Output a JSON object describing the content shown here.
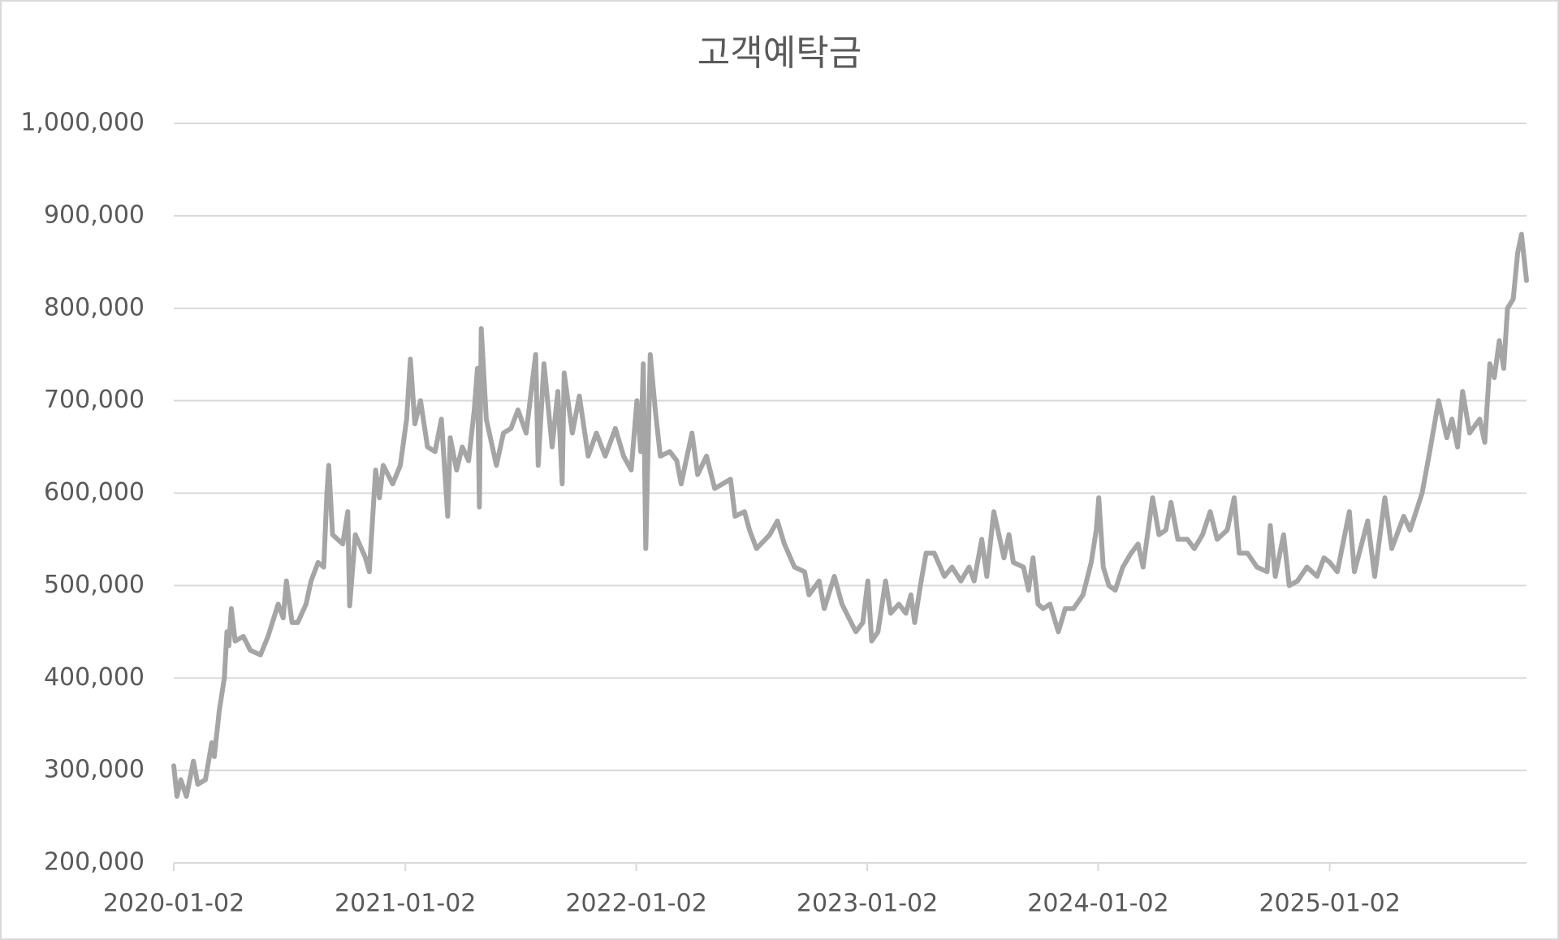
{
  "chart_data": {
    "type": "line",
    "title": "고객예탁금",
    "color": "#a5a5a5",
    "grid": true,
    "ylim": [
      200000,
      1000000
    ],
    "yticks": [
      {
        "value": 200000,
        "label": "200,000"
      },
      {
        "value": 300000,
        "label": "300,000"
      },
      {
        "value": 400000,
        "label": "400,000"
      },
      {
        "value": 500000,
        "label": "500,000"
      },
      {
        "value": 600000,
        "label": "600,000"
      },
      {
        "value": 700000,
        "label": "700,000"
      },
      {
        "value": 800000,
        "label": "800,000"
      },
      {
        "value": 900000,
        "label": "900,000"
      },
      {
        "value": 1000000,
        "label": "1,000,000"
      }
    ],
    "xlim": [
      "2020-01-02",
      "2025-11-09"
    ],
    "xticks": [
      "2020-01-02",
      "2021-01-02",
      "2022-01-02",
      "2023-01-02",
      "2024-01-02",
      "2025-01-02"
    ],
    "x": [
      "2020-01-02",
      "2020-01-07",
      "2020-01-13",
      "2020-01-22",
      "2020-02-02",
      "2020-02-09",
      "2020-02-21",
      "2020-03-02",
      "2020-03-06",
      "2020-03-14",
      "2020-03-22",
      "2020-03-26",
      "2020-03-29",
      "2020-04-02",
      "2020-04-08",
      "2020-04-21",
      "2020-05-02",
      "2020-05-18",
      "2020-05-30",
      "2020-06-15",
      "2020-06-23",
      "2020-06-28",
      "2020-07-07",
      "2020-07-16",
      "2020-07-29",
      "2020-08-06",
      "2020-08-17",
      "2020-08-26",
      "2020-08-31",
      "2020-09-03",
      "2020-09-09",
      "2020-09-25",
      "2020-10-03",
      "2020-10-06",
      "2020-10-15",
      "2020-10-31",
      "2020-11-06",
      "2020-11-16",
      "2020-11-22",
      "2020-11-28",
      "2020-12-13",
      "2020-12-25",
      "2021-01-04",
      "2021-01-10",
      "2021-01-17",
      "2021-01-26",
      "2021-02-06",
      "2021-02-18",
      "2021-02-28",
      "2021-03-10",
      "2021-03-14",
      "2021-03-24",
      "2021-04-02",
      "2021-04-12",
      "2021-04-21",
      "2021-04-26",
      "2021-04-29",
      "2021-05-02",
      "2021-05-10",
      "2021-05-26",
      "2021-06-06",
      "2021-06-18",
      "2021-06-29",
      "2021-07-12",
      "2021-07-27",
      "2021-07-31",
      "2021-08-09",
      "2021-08-22",
      "2021-08-31",
      "2021-09-07",
      "2021-09-10",
      "2021-09-23",
      "2021-10-04",
      "2021-10-18",
      "2021-10-31",
      "2021-11-14",
      "2021-11-30",
      "2021-12-13",
      "2021-12-25",
      "2022-01-03",
      "2022-01-09",
      "2022-01-13",
      "2022-01-17",
      "2022-01-24",
      "2022-02-01",
      "2022-02-09",
      "2022-02-24",
      "2022-03-07",
      "2022-03-14",
      "2022-03-31",
      "2022-04-09",
      "2022-04-23",
      "2022-05-06",
      "2022-05-31",
      "2022-06-07",
      "2022-06-22",
      "2022-06-30",
      "2022-07-11",
      "2022-08-01",
      "2022-08-13",
      "2022-08-24",
      "2022-09-09",
      "2022-09-25",
      "2022-10-02",
      "2022-10-18",
      "2022-10-26",
      "2022-11-11",
      "2022-11-23",
      "2022-12-04",
      "2022-12-15",
      "2022-12-26",
      "2023-01-03",
      "2023-01-09",
      "2023-01-19",
      "2023-01-31",
      "2023-02-08",
      "2023-02-21",
      "2023-03-04",
      "2023-03-12",
      "2023-03-18",
      "2023-03-27",
      "2023-04-05",
      "2023-04-18",
      "2023-05-04",
      "2023-05-16",
      "2023-05-30",
      "2023-06-12",
      "2023-06-20",
      "2023-07-02",
      "2023-07-10",
      "2023-07-21",
      "2023-08-06",
      "2023-08-14",
      "2023-08-21",
      "2023-09-06",
      "2023-09-14",
      "2023-09-21",
      "2023-09-29",
      "2023-10-07",
      "2023-10-18",
      "2023-10-31",
      "2023-11-11",
      "2023-11-24",
      "2023-12-09",
      "2023-12-22",
      "2023-12-30",
      "2024-01-03",
      "2024-01-10",
      "2024-01-19",
      "2024-01-29",
      "2024-02-10",
      "2024-02-23",
      "2024-03-05",
      "2024-03-13",
      "2024-03-21",
      "2024-03-28",
      "2024-04-07",
      "2024-04-18",
      "2024-04-26",
      "2024-05-07",
      "2024-05-22",
      "2024-06-02",
      "2024-06-15",
      "2024-06-27",
      "2024-07-08",
      "2024-07-24",
      "2024-08-04",
      "2024-08-12",
      "2024-08-25",
      "2024-09-09",
      "2024-09-25",
      "2024-09-30",
      "2024-10-08",
      "2024-10-21",
      "2024-10-30",
      "2024-11-12",
      "2024-11-27",
      "2024-12-13",
      "2024-12-24",
      "2025-01-02",
      "2025-01-14",
      "2025-02-02",
      "2025-02-10",
      "2025-03-03",
      "2025-03-14",
      "2025-03-30",
      "2025-04-10",
      "2025-04-29",
      "2025-05-09",
      "2025-05-28",
      "2025-06-09",
      "2025-06-23",
      "2025-07-06",
      "2025-07-14",
      "2025-07-23",
      "2025-07-31",
      "2025-08-11",
      "2025-08-27",
      "2025-09-04",
      "2025-09-12",
      "2025-09-19",
      "2025-09-27",
      "2025-10-04",
      "2025-10-10",
      "2025-10-19",
      "2025-10-26",
      "2025-11-01",
      "2025-11-09"
    ],
    "values": [
      305000,
      272000,
      290000,
      272000,
      310000,
      285000,
      290000,
      330000,
      315000,
      365000,
      400000,
      450000,
      435000,
      475000,
      440000,
      445000,
      430000,
      425000,
      445000,
      480000,
      465000,
      505000,
      460000,
      460000,
      480000,
      505000,
      525000,
      520000,
      600000,
      630000,
      555000,
      545000,
      580000,
      478000,
      555000,
      530000,
      515000,
      625000,
      595000,
      630000,
      610000,
      630000,
      680000,
      745000,
      675000,
      700000,
      650000,
      645000,
      680000,
      575000,
      660000,
      625000,
      650000,
      635000,
      690000,
      735000,
      585000,
      778000,
      680000,
      630000,
      665000,
      670000,
      690000,
      665000,
      750000,
      630000,
      740000,
      650000,
      710000,
      610000,
      730000,
      665000,
      705000,
      640000,
      665000,
      640000,
      670000,
      640000,
      625000,
      700000,
      645000,
      740000,
      540000,
      750000,
      690000,
      640000,
      645000,
      635000,
      610000,
      665000,
      620000,
      640000,
      605000,
      615000,
      575000,
      580000,
      560000,
      540000,
      555000,
      570000,
      545000,
      520000,
      515000,
      490000,
      505000,
      475000,
      510000,
      480000,
      465000,
      450000,
      460000,
      505000,
      440000,
      450000,
      505000,
      470000,
      480000,
      470000,
      490000,
      460000,
      500000,
      535000,
      535000,
      510000,
      520000,
      505000,
      520000,
      505000,
      550000,
      510000,
      580000,
      530000,
      555000,
      525000,
      520000,
      495000,
      530000,
      480000,
      475000,
      480000,
      450000,
      475000,
      475000,
      490000,
      525000,
      560000,
      595000,
      520000,
      500000,
      495000,
      520000,
      535000,
      545000,
      520000,
      560000,
      595000,
      555000,
      560000,
      590000,
      550000,
      550000,
      540000,
      555000,
      580000,
      550000,
      560000,
      595000,
      535000,
      535000,
      520000,
      515000,
      565000,
      510000,
      555000,
      500000,
      505000,
      520000,
      510000,
      530000,
      525000,
      515000,
      580000,
      515000,
      570000,
      510000,
      595000,
      540000,
      575000,
      560000,
      600000,
      645000,
      700000,
      660000,
      680000,
      650000,
      710000,
      665000,
      680000,
      655000,
      740000,
      725000,
      765000,
      735000,
      800000,
      810000,
      860000,
      880000,
      830000
    ]
  }
}
